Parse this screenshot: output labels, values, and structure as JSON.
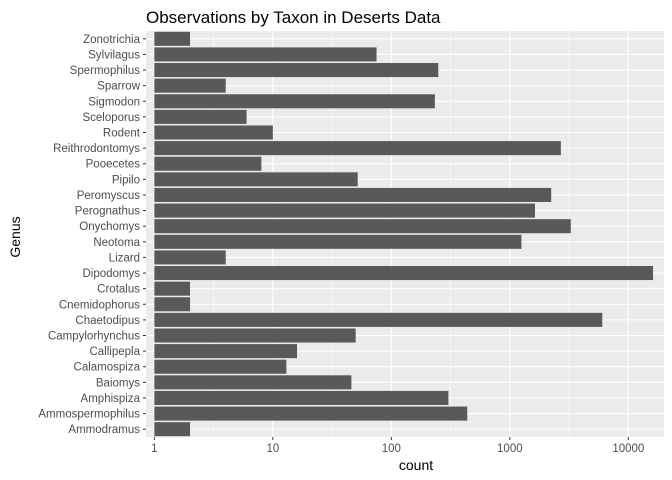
{
  "chart_data": {
    "type": "bar",
    "orientation": "horizontal",
    "title": "Observations by Taxon in Deserts Data",
    "xlabel": "count",
    "ylabel": "Genus",
    "x_scale": "log10",
    "xlim": [
      0.85,
      20000
    ],
    "x_ticks": [
      1,
      10,
      100,
      1000,
      10000
    ],
    "x_tick_labels": [
      "1",
      "10",
      "100",
      "1000",
      "10000"
    ],
    "grid": true,
    "categories": [
      "Ammodramus",
      "Ammospermophilus",
      "Amphispiza",
      "Baiomys",
      "Calamospiza",
      "Callipepla",
      "Campylorhynchus",
      "Chaetodipus",
      "Cnemidophorus",
      "Crotalus",
      "Dipodomys",
      "Lizard",
      "Neotoma",
      "Onychomys",
      "Perognathus",
      "Peromyscus",
      "Pipilo",
      "Pooecetes",
      "Reithrodontomys",
      "Rodent",
      "Sceloporus",
      "Sigmodon",
      "Sparrow",
      "Spermophilus",
      "Sylvilagus",
      "Zonotrichia"
    ],
    "values": [
      2,
      437,
      303,
      46,
      13,
      16,
      50,
      6029,
      2,
      2,
      16167,
      4,
      1252,
      3267,
      1629,
      2234,
      52,
      8,
      2694,
      10,
      6,
      233,
      4,
      249,
      75,
      2
    ]
  },
  "colors": {
    "panel_background": "#ebebeb",
    "grid_major": "#ffffff",
    "bar_fill": "#595959",
    "tick_text": "#4d4d4d",
    "tick_mark": "#333333"
  }
}
